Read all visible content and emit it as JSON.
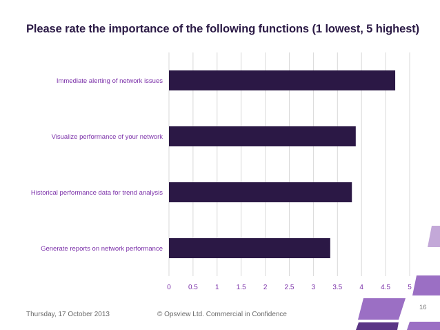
{
  "slide": {
    "title": "Please rate the importance of the following functions (1 lowest, 5 highest)",
    "footer_date": "Thursday, 17 October 2013",
    "footer_copyright": "© Opsview Ltd. Commercial in Confidence",
    "page_number": "16"
  },
  "colors": {
    "bar": "#2b1845",
    "category_label": "#7a2fa8",
    "tick_label": "#7a2fa8",
    "grid": "#d9d9d9",
    "title": "#2b1a45",
    "deco_light": "#c3a8d8",
    "deco_mid": "#9b6fc4",
    "deco_dark": "#5a3585"
  },
  "chart_data": {
    "type": "bar",
    "orientation": "horizontal",
    "title": "",
    "xlabel": "",
    "ylabel": "",
    "categories": [
      "Immediate alerting of network issues",
      "Visualize performance of your network",
      "Historical performance data for trend analysis",
      "Generate reports on network performance"
    ],
    "values": [
      4.7,
      3.88,
      3.8,
      3.35
    ],
    "xlim": [
      0,
      5
    ],
    "xticks": [
      "0",
      "0.5",
      "1",
      "1.5",
      "2",
      "2.5",
      "3",
      "3.5",
      "4",
      "4.5",
      "5"
    ],
    "grid": true,
    "legend": "none"
  }
}
